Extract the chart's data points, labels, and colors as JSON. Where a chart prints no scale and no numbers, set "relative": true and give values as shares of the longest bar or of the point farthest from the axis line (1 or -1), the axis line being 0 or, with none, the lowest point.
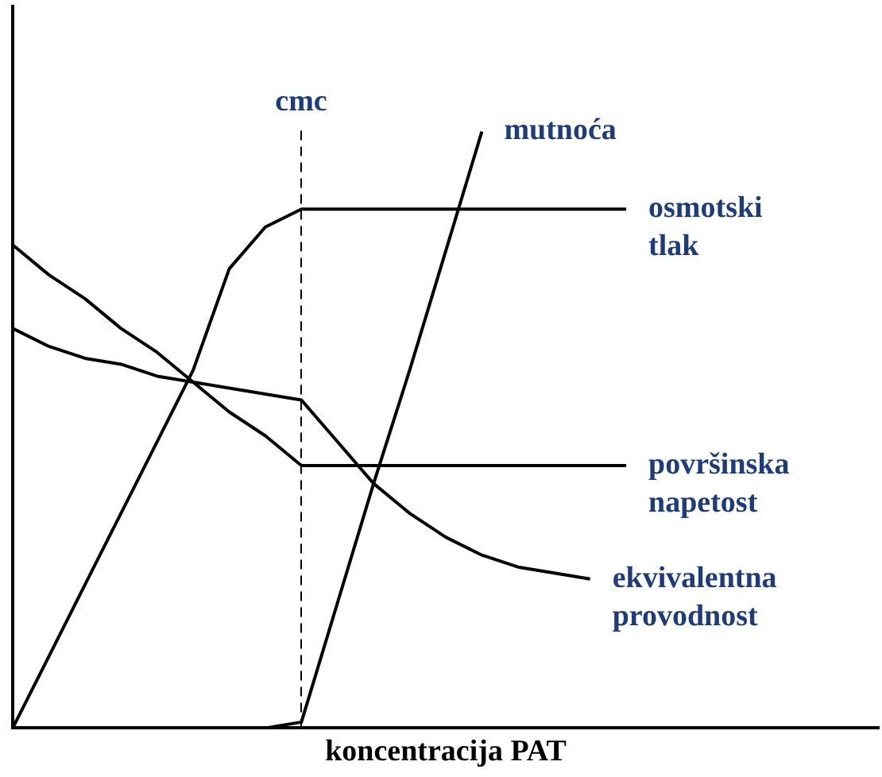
{
  "chart_data": {
    "type": "line",
    "relative": true,
    "xlabel": "koncentracija PAT",
    "legend": false,
    "grid": false,
    "marker": "none",
    "line_style": "solid",
    "categories": [
      null,
      null,
      null,
      null,
      null,
      null,
      null,
      null,
      null,
      null,
      null,
      null,
      null,
      null,
      null,
      null,
      null,
      null,
      null,
      null,
      null,
      null,
      null,
      null,
      null
    ],
    "series": [
      {
        "name": "osmotski tlak",
        "color": "#000000",
        "values": [
          0,
          0.12,
          0.24,
          0.36,
          0.48,
          0.6,
          0.77,
          0.84,
          0.87,
          0.87,
          0.87,
          0.87,
          0.87,
          0.87,
          0.87,
          0.87,
          0.87,
          0.87,
          null,
          null,
          null,
          null,
          null,
          null,
          null
        ]
      },
      {
        "name": "površinska napetost",
        "color": "#000000",
        "values": [
          0.81,
          0.76,
          0.72,
          0.67,
          0.63,
          0.58,
          0.53,
          0.49,
          0.44,
          0.44,
          0.44,
          0.44,
          0.44,
          0.44,
          0.44,
          0.44,
          0.44,
          0.44,
          null,
          null,
          null,
          null,
          null,
          null,
          null
        ]
      },
      {
        "name": "ekvivalentna provodnost",
        "color": "#000000",
        "values": [
          0.67,
          0.64,
          0.62,
          0.61,
          0.59,
          0.58,
          0.57,
          0.56,
          0.55,
          0.48,
          0.41,
          0.36,
          0.32,
          0.29,
          0.27,
          0.26,
          0.25,
          null,
          null,
          null,
          null,
          null,
          null,
          null,
          null
        ]
      },
      {
        "name": "mutnoća",
        "color": "#000000",
        "values": [
          0,
          0,
          0,
          0,
          0,
          0,
          0,
          0,
          0.01,
          0.21,
          0.41,
          0.6,
          0.8,
          1,
          null,
          null,
          null,
          null,
          null,
          null,
          null,
          null,
          null,
          null,
          null
        ]
      }
    ],
    "annotations": [
      "cmc"
    ]
  }
}
